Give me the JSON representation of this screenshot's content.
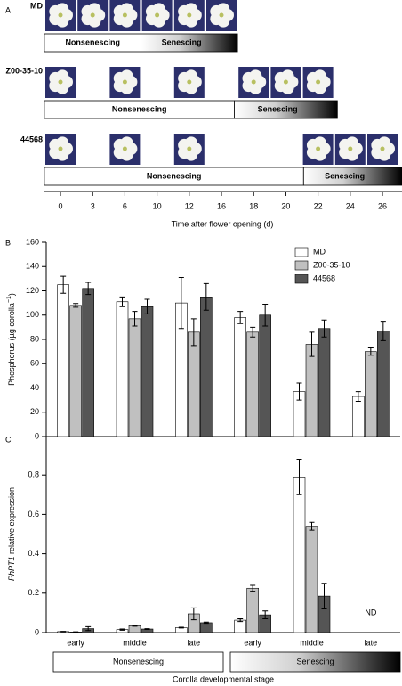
{
  "chart_data": [
    {
      "type": "timeline",
      "panel": "A",
      "xticks": [
        0,
        3,
        6,
        10,
        12,
        16,
        18,
        20,
        22,
        24,
        26
      ],
      "xlim": [
        -1.5,
        27.5
      ],
      "xlabel": "Time after flower opening (d)",
      "lines": [
        {
          "name": "MD",
          "photos": [
            0,
            3,
            6,
            10,
            12,
            16
          ],
          "phases": [
            {
              "label": "Nonsenescing",
              "start": -1.5,
              "end": 8
            },
            {
              "label": "Senescing",
              "start": 8,
              "end": 17
            }
          ]
        },
        {
          "name": "Z00-35-10",
          "photos": [
            0,
            6,
            12,
            18,
            20,
            22
          ],
          "phases": [
            {
              "label": "Nonsenescing",
              "start": -1.5,
              "end": 16.8
            },
            {
              "label": "Senescing",
              "start": 16.8,
              "end": 23.2
            }
          ]
        },
        {
          "name": "44568",
          "photos": [
            0,
            6,
            12,
            22,
            24,
            26
          ],
          "phases": [
            {
              "label": "Nonsenescing",
              "start": -1.5,
              "end": 21.1
            },
            {
              "label": "Senescing",
              "start": 21.1,
              "end": 27.2
            }
          ]
        }
      ]
    },
    {
      "type": "bar",
      "panel": "B",
      "ylabel": "Phosphorus (µg corolla",
      "ylabel_sup": "−1",
      "ylabel_end": ")",
      "ylim": [
        0,
        160
      ],
      "yticks": [
        0,
        20,
        40,
        60,
        80,
        100,
        120,
        140,
        160
      ],
      "legend": "upper right",
      "series": [
        {
          "name": "MD",
          "color": "#ffffff",
          "values": [
            125,
            111,
            110,
            98,
            37,
            33
          ],
          "errors": [
            7,
            4,
            21,
            5,
            7,
            4
          ]
        },
        {
          "name": "Z00-35-10",
          "color": "#c0c0c0",
          "values": [
            108,
            97,
            86,
            86,
            76,
            70
          ],
          "errors": [
            1.5,
            6,
            11,
            4,
            10,
            3
          ]
        },
        {
          "name": "44568",
          "color": "#555555",
          "values": [
            122,
            107,
            115,
            100,
            89,
            87
          ],
          "errors": [
            5,
            6,
            11,
            9,
            7,
            8
          ]
        }
      ]
    },
    {
      "type": "bar",
      "panel": "C",
      "ylabel_italic": "PhPT1",
      "ylabel": "relative expression",
      "ylim": [
        0,
        1
      ],
      "yticks": [
        0,
        0.2,
        0.4,
        0.6,
        0.8
      ],
      "categories": [
        "early",
        "middle",
        "late",
        "early",
        "middle",
        "late"
      ],
      "phases": [
        "Nonsenescing",
        "Senescing"
      ],
      "xlabel": "Corolla developmental stage",
      "annotation": "ND",
      "series": [
        {
          "color": "#ffffff",
          "values": [
            0.005,
            0.015,
            0.025,
            0.063,
            0.79,
            null
          ],
          "errors": [
            0.001,
            0.003,
            0.002,
            0.007,
            0.09,
            null
          ]
        },
        {
          "color": "#c0c0c0",
          "values": [
            0.003,
            0.035,
            0.095,
            0.225,
            0.54,
            null
          ],
          "errors": [
            0.001,
            0.003,
            0.03,
            0.015,
            0.02,
            null
          ]
        },
        {
          "color": "#555555",
          "values": [
            0.02,
            0.018,
            0.05,
            0.09,
            0.185,
            null
          ],
          "errors": [
            0.01,
            0.002,
            0.003,
            0.02,
            0.065,
            null
          ]
        }
      ]
    }
  ]
}
